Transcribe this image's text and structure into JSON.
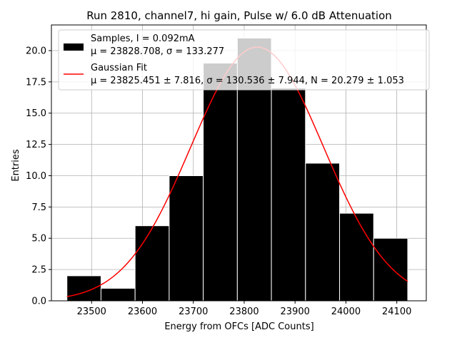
{
  "chart_data": {
    "type": "bar",
    "title": "Run 2810, channel7, hi gain, Pulse w/ 6.0 dB Attenuation",
    "xlabel": "Energy from OFCs [ADC Counts]",
    "ylabel": "Entries",
    "xlim": [
      23421,
      24158
    ],
    "ylim": [
      0,
      22.05
    ],
    "grid": true,
    "legend_position": "top-right",
    "bin_edges": [
      23451.5,
      23518.5,
      23585.5,
      23652.5,
      23719.5,
      23786.5,
      23853.5,
      23920.5,
      23987.5,
      24054.5,
      24121.5
    ],
    "values": [
      2,
      1,
      6,
      10,
      19,
      21,
      17,
      11,
      7,
      5
    ],
    "x_ticks": [
      23500,
      23600,
      23700,
      23800,
      23900,
      24000,
      24100
    ],
    "y_ticks": [
      0.0,
      2.5,
      5.0,
      7.5,
      10.0,
      12.5,
      15.0,
      17.5,
      20.0
    ],
    "x_tick_labels": [
      "23500",
      "23600",
      "23700",
      "23800",
      "23900",
      "24000",
      "24100"
    ],
    "y_tick_labels": [
      "0.0",
      "2.5",
      "5.0",
      "7.5",
      "10.0",
      "12.5",
      "15.0",
      "17.5",
      "20.0"
    ],
    "series": [
      {
        "name": "Samples, I = 0.092mA",
        "stats": "μ = 23828.708, σ = 133.277",
        "color": "#000000",
        "kind": "histogram"
      },
      {
        "name": "Gaussian Fit",
        "stats": "μ = 23825.451 ± 7.816, σ = 130.536 ± 7.944, N = 20.279 ± 1.053",
        "color": "#ff0000",
        "kind": "line",
        "mu": 23825.451,
        "sigma": 130.536,
        "amplitude": 20.279,
        "x_range": [
          23451.5,
          24121.5
        ]
      }
    ]
  }
}
